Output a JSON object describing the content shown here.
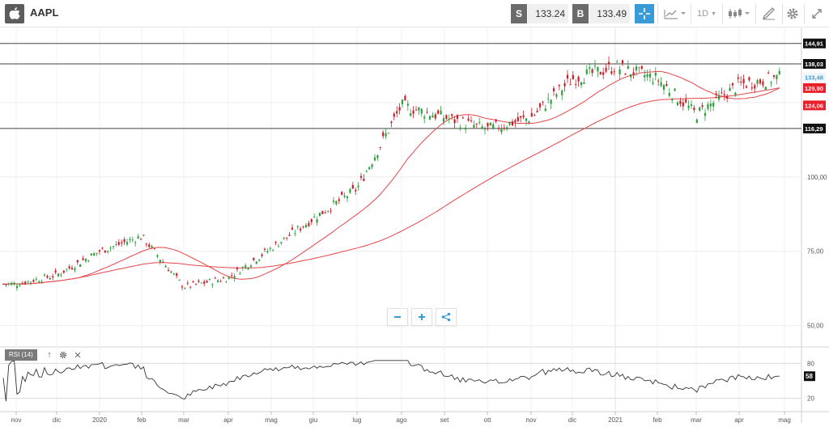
{
  "toolbar": {
    "symbol": "AAPL",
    "sell_label": "S",
    "sell_price": "133.24",
    "buy_label": "B",
    "buy_price": "133.49",
    "interval": "1D"
  },
  "price_axis": {
    "ticks": [
      "100,00",
      "75,00",
      "50,00"
    ],
    "badges": {
      "resistance_high": "144,91",
      "resistance_mid": "138,03",
      "last_price": "133,48",
      "ma_fast": "129,90",
      "ma_slow": "124,06",
      "support": "116,29"
    }
  },
  "rsi": {
    "label": "RSI (14)",
    "ticks": [
      "80",
      "20"
    ],
    "value": "58"
  },
  "time_axis": {
    "labels": [
      "nov",
      "dic",
      "2020",
      "feb",
      "mar",
      "apr",
      "mag",
      "giu",
      "lug",
      "ago",
      "set",
      "ott",
      "nov",
      "dic",
      "2021",
      "feb",
      "mar",
      "apr",
      "mag"
    ]
  },
  "colors": {
    "accent": "#3a9bd9",
    "bull": "#2e9e3e",
    "bear": "#c8202a",
    "moving_average": "#e8444a",
    "rsi_line": "#333333",
    "resistance_line": "#444444"
  },
  "icons": {
    "logo": "apple-logo-icon",
    "crosshair": "crosshair-icon",
    "chart_type": "line-chart-icon",
    "candles": "candlestick-icon",
    "draw": "pencil-icon",
    "settings": "gear-icon",
    "fullscreen": "expand-icon",
    "zoom_out": "minus-icon",
    "zoom_in": "plus-icon",
    "share": "share-icon"
  },
  "chart_data": {
    "type": "candlestick",
    "title": "AAPL",
    "x": [
      "nov 2019",
      "dic 2019",
      "2020",
      "feb 2020",
      "mar 2020",
      "apr 2020",
      "mag 2020",
      "giu 2020",
      "lug 2020",
      "ago 2020",
      "set 2020",
      "ott 2020",
      "nov 2020",
      "dic 2020",
      "2021",
      "feb 2021",
      "mar 2021",
      "apr 2021"
    ],
    "close_approx": [
      64,
      67,
      75,
      80,
      63,
      66,
      76,
      86,
      96,
      124,
      120,
      116,
      120,
      133,
      137,
      133,
      121,
      131
    ],
    "ylim": [
      45,
      150
    ],
    "horizontal_levels": [
      144.91,
      138.03,
      116.29
    ],
    "last_price": 133.48,
    "moving_averages": [
      {
        "value_last": 129.9
      },
      {
        "value_last": 124.06
      }
    ],
    "rsi": {
      "ylim": [
        0,
        100
      ],
      "levels": [
        80,
        20
      ],
      "last": 58
    }
  }
}
